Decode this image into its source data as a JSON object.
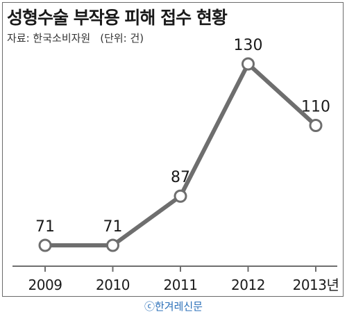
{
  "header": {
    "title": "성형수술 부작용 피해 접수 현황",
    "source": "자료: 한국소비자원",
    "unit": "(단위: 건)"
  },
  "chart_data": {
    "type": "line",
    "categories": [
      "2009",
      "2010",
      "2011",
      "2012",
      "2013년"
    ],
    "series": [
      {
        "values": [
          71,
          71,
          87,
          130,
          110
        ]
      }
    ],
    "data_labels": [
      "71",
      "71",
      "87",
      "130",
      "110"
    ],
    "ylim": [
      50,
      140
    ],
    "grid": false,
    "legend": "none",
    "colors": {
      "line": "#6e6e6e",
      "marker_fill": "#ffffff",
      "axis": "#6e6e6e"
    }
  },
  "footer": {
    "credit": "ⓒ한겨레신문"
  }
}
